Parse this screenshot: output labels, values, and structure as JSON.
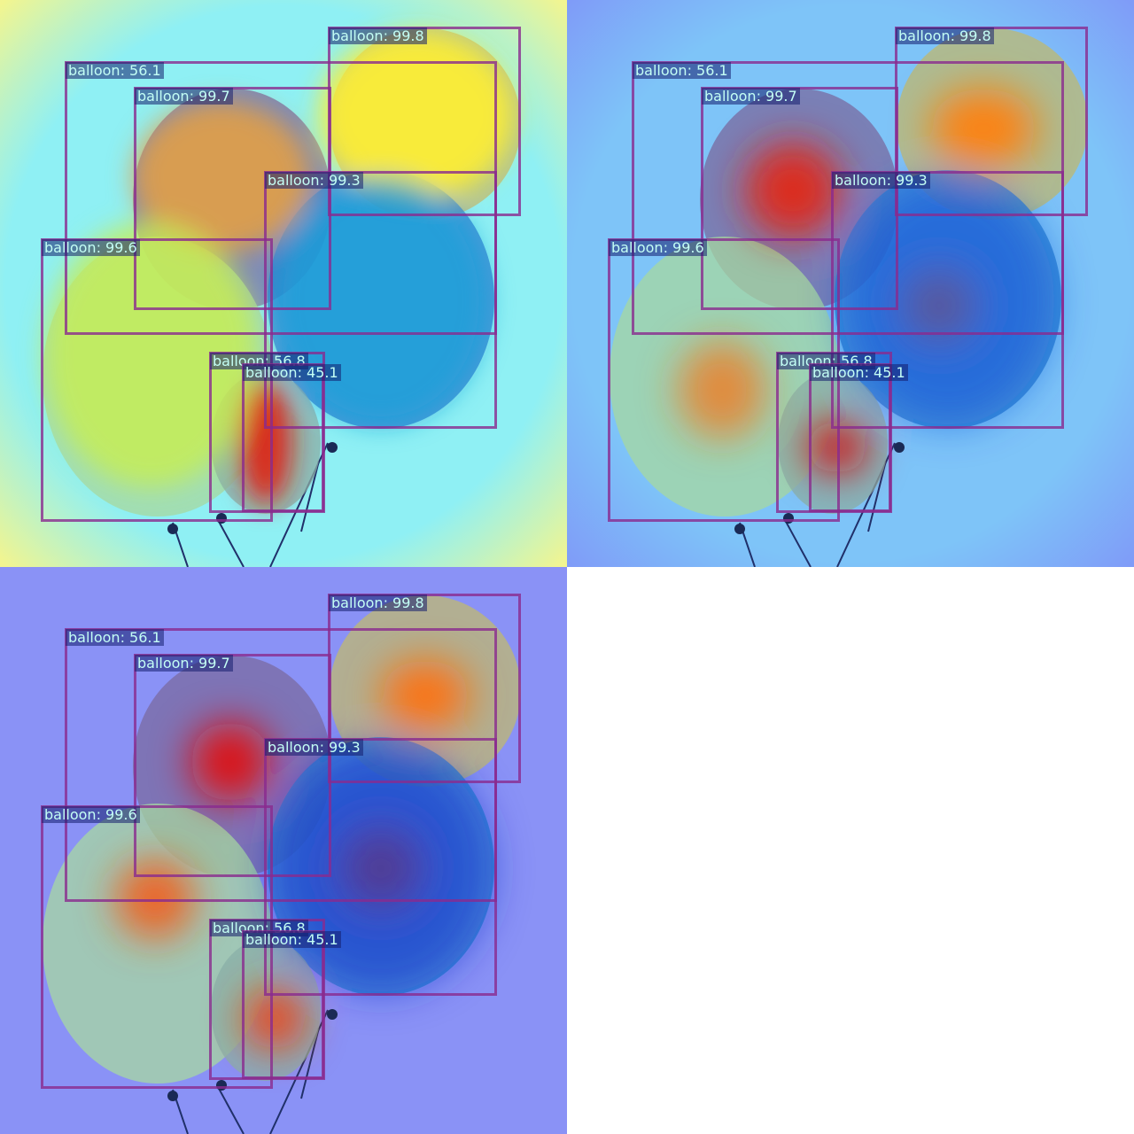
{
  "colors": {
    "box": "#8a2a8e",
    "label_bg": "rgba(20,30,110,0.55)",
    "label_text": "#c4fff5"
  },
  "detections": [
    {
      "label": "balloon: 99.8"
    },
    {
      "label": "balloon: 56.1"
    },
    {
      "label": "balloon: 99.7"
    },
    {
      "label": "balloon: 99.3"
    },
    {
      "label": "balloon: 99.6"
    },
    {
      "label": "balloon: 56.8"
    },
    {
      "label": "balloon: 45.1"
    }
  ],
  "panels": [
    {
      "name": "heatmap-panel-1"
    },
    {
      "name": "heatmap-panel-2"
    },
    {
      "name": "heatmap-panel-3"
    }
  ]
}
